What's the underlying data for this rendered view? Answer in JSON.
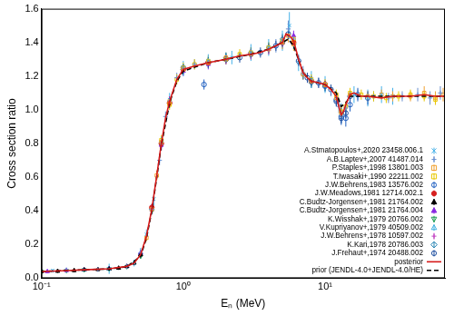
{
  "chart_data": {
    "type": "scatter",
    "x_label": "Eₙ (MeV)",
    "y_label": "Cross section ratio",
    "log": "x",
    "grid": false,
    "legend": "lower right",
    "xlim": [
      0.1,
      70
    ],
    "xticks": [
      {
        "value": 0.1,
        "label": "10⁻¹"
      },
      {
        "value": 1,
        "label": "10⁰"
      },
      {
        "value": 10,
        "label": "10¹"
      }
    ],
    "ylim": [
      0,
      1.6
    ],
    "yticks": [
      {
        "value": 0,
        "label": "0.0"
      },
      0.2,
      0.4,
      0.6,
      0.8,
      {
        "value": 1,
        "label": "1.0"
      },
      1.2,
      1.4,
      1.6
    ],
    "series": [
      {
        "name": "A.Stmatopoulos+,2020 23458.006.1",
        "type": "scatter",
        "marker": "x",
        "color": "#45b0e8",
        "x": [
          0.12,
          0.2,
          0.3,
          0.45,
          0.55,
          0.62,
          0.7,
          0.8,
          1.0,
          1.5,
          2.2,
          3.0,
          4.0,
          5.0,
          5.6,
          6.5,
          8,
          10,
          13,
          16,
          20,
          25,
          30
        ],
        "values": [
          0.045,
          0.05,
          0.056,
          0.09,
          0.26,
          0.47,
          0.8,
          1.06,
          1.25,
          1.29,
          1.31,
          1.34,
          1.37,
          1.41,
          1.5,
          1.28,
          1.18,
          1.15,
          0.98,
          1.09,
          1.07,
          1.09,
          1.08
        ],
        "errors": [
          0.01,
          0.01,
          0.01,
          0.02,
          0.03,
          0.04,
          0.04,
          0.04,
          0.04,
          0.04,
          0.04,
          0.05,
          0.05,
          0.06,
          0.08,
          0.05,
          0.05,
          0.05,
          0.06,
          0.05,
          0.05,
          0.05,
          0.05
        ]
      },
      {
        "name": "A.B.Laptev+,2007 41487.014",
        "type": "scatter",
        "marker": "+",
        "color": "#6a8fcf",
        "x": [
          0.15,
          0.25,
          0.4,
          0.5,
          0.6,
          0.68,
          0.75,
          0.9,
          1.2,
          2,
          3,
          4.5,
          5.5,
          6,
          7,
          9,
          11,
          12.5,
          14,
          17,
          22,
          28,
          35,
          45,
          55,
          65
        ],
        "values": [
          0.05,
          0.052,
          0.07,
          0.15,
          0.41,
          0.7,
          0.96,
          1.19,
          1.27,
          1.3,
          1.33,
          1.38,
          1.48,
          1.42,
          1.22,
          1.16,
          1.11,
          1.02,
          1.01,
          1.09,
          1.08,
          1.07,
          1.08,
          1.09,
          1.07,
          1.1
        ],
        "errors": [
          0.01,
          0.01,
          0.01,
          0.02,
          0.03,
          0.03,
          0.03,
          0.03,
          0.03,
          0.03,
          0.03,
          0.04,
          0.05,
          0.04,
          0.04,
          0.03,
          0.03,
          0.04,
          0.04,
          0.03,
          0.03,
          0.03,
          0.03,
          0.04,
          0.04,
          0.04
        ]
      },
      {
        "name": "P.Staples+,1998 13801.003",
        "type": "scatter",
        "marker": "open_square",
        "color": "#f0a030",
        "x": [
          0.55,
          0.6,
          0.65,
          0.7,
          0.8,
          1,
          1.5,
          2,
          3,
          4,
          5,
          5.5,
          6,
          7,
          8,
          10,
          12,
          13,
          15,
          20,
          25,
          30,
          40,
          50,
          60,
          68
        ],
        "values": [
          0.24,
          0.41,
          0.61,
          0.81,
          1.05,
          1.24,
          1.28,
          1.31,
          1.33,
          1.36,
          1.4,
          1.44,
          1.39,
          1.21,
          1.17,
          1.15,
          1.07,
          0.98,
          1.09,
          1.08,
          1.09,
          1.08,
          1.08,
          1.1,
          1.07,
          1.09
        ],
        "errors": [
          0.02,
          0.02,
          0.03,
          0.03,
          0.03,
          0.03,
          0.03,
          0.03,
          0.03,
          0.03,
          0.04,
          0.04,
          0.04,
          0.03,
          0.03,
          0.03,
          0.03,
          0.04,
          0.03,
          0.03,
          0.03,
          0.03,
          0.03,
          0.04,
          0.04,
          0.04
        ]
      },
      {
        "name": "T.Iwasaki+,1990 22211.002",
        "type": "scatter",
        "marker": "open_square",
        "color": "#e8c800",
        "x": [
          0.7,
          0.8,
          0.9,
          1.0,
          1.2,
          1.5,
          2,
          2.5,
          3,
          4,
          5,
          6,
          8,
          10,
          12,
          13,
          14,
          15,
          18,
          22,
          27,
          33,
          40,
          50,
          60
        ],
        "values": [
          0.82,
          1.03,
          1.18,
          1.25,
          1.27,
          1.29,
          1.3,
          1.33,
          1.34,
          1.37,
          1.41,
          1.42,
          1.18,
          1.15,
          1.09,
          0.99,
          1.02,
          1.1,
          1.09,
          1.08,
          1.07,
          1.08,
          1.09,
          1.08,
          1.06
        ],
        "errors": [
          0.03,
          0.03,
          0.03,
          0.03,
          0.03,
          0.03,
          0.03,
          0.03,
          0.03,
          0.03,
          0.03,
          0.03,
          0.03,
          0.03,
          0.03,
          0.03,
          0.03,
          0.03,
          0.03,
          0.03,
          0.03,
          0.03,
          0.03,
          0.03,
          0.03
        ]
      },
      {
        "name": "J.W.Behrens,1983 13576.002",
        "type": "scatter",
        "marker": "open_circle",
        "color": "#2060c0",
        "x": [
          1,
          1.4,
          2,
          3,
          5,
          8,
          10,
          12,
          13,
          14,
          15,
          17,
          20
        ],
        "values": [
          1.25,
          1.15,
          1.3,
          1.33,
          1.4,
          1.17,
          1.14,
          1.06,
          0.96,
          0.95,
          1.03,
          1.09,
          1.07
        ],
        "errors": [
          0.02,
          0.03,
          0.02,
          0.02,
          0.03,
          0.03,
          0.03,
          0.04,
          0.05,
          0.05,
          0.04,
          0.04,
          0.04
        ]
      },
      {
        "name": "J.W.Meadows,1981 12714.002.1",
        "type": "scatter",
        "marker": "filled_circle",
        "color": "#d62020",
        "x": [
          0.6,
          0.7,
          0.8,
          1,
          1.5,
          2,
          3,
          5,
          6,
          8,
          10
        ],
        "values": [
          0.42,
          0.8,
          1.04,
          1.24,
          1.28,
          1.3,
          1.33,
          1.4,
          1.4,
          1.17,
          1.15
        ],
        "errors": [
          0.02,
          0.02,
          0.02,
          0.02,
          0.02,
          0.02,
          0.02,
          0.02,
          0.02,
          0.02,
          0.02
        ]
      },
      {
        "name": "C.Budtz-Jorgensen+,1981 21764.002",
        "type": "scatter",
        "marker": "filled_triangle",
        "color": "#000000",
        "x": [
          0.1,
          0.13,
          0.17,
          0.2,
          0.25,
          0.3,
          0.35,
          0.4,
          0.45,
          0.5
        ],
        "values": [
          0.04,
          0.042,
          0.046,
          0.05,
          0.052,
          0.055,
          0.06,
          0.07,
          0.09,
          0.14
        ],
        "errors": [
          0.01,
          0.01,
          0.01,
          0.01,
          0.01,
          0.01,
          0.01,
          0.01,
          0.01,
          0.01
        ]
      },
      {
        "name": "C.Budtz-Jorgensen+,1981 21764.004",
        "type": "scatter",
        "marker": "filled_triangle",
        "color": "#8a2be2",
        "x": [
          0.11,
          0.15,
          0.2,
          0.3,
          0.4,
          0.5,
          0.6,
          0.7,
          0.8,
          1.0,
          1.5,
          2,
          3,
          4,
          5,
          6
        ],
        "values": [
          0.04,
          0.046,
          0.05,
          0.057,
          0.07,
          0.15,
          0.42,
          0.79,
          1.05,
          1.23,
          1.27,
          1.3,
          1.33,
          1.36,
          1.41,
          1.44
        ],
        "errors": [
          0.01,
          0.01,
          0.01,
          0.01,
          0.01,
          0.02,
          0.02,
          0.03,
          0.03,
          0.03,
          0.03,
          0.03,
          0.03,
          0.03,
          0.03,
          0.03
        ]
      },
      {
        "name": "K.Wisshak+,1979 20766.002",
        "type": "scatter",
        "marker": "triangle_down",
        "color": "#1a9a50",
        "x": [
          0.1,
          0.15,
          0.2,
          0.3,
          0.4,
          0.5,
          0.6
        ],
        "values": [
          0.04,
          0.045,
          0.05,
          0.056,
          0.068,
          0.13,
          0.4
        ],
        "errors": [
          0.01,
          0.01,
          0.01,
          0.01,
          0.01,
          0.01,
          0.01
        ]
      },
      {
        "name": "V.Kupriyanov+,1979 40509.002",
        "type": "scatter",
        "marker": "open_triangle",
        "color": "#40b0e0",
        "x": [
          0.3,
          0.5,
          0.7,
          1,
          1.5,
          2
        ],
        "values": [
          0.056,
          0.15,
          0.81,
          1.23,
          1.29,
          1.31
        ],
        "errors": [
          0.03,
          0.03,
          0.03,
          0.03,
          0.03,
          0.03
        ]
      },
      {
        "name": "J.W.Behrens+,1978 10597.002",
        "type": "scatter",
        "marker": "+",
        "color": "#c040c0",
        "x": [
          0.5,
          0.6,
          0.7,
          0.8,
          1,
          1.5,
          2,
          3,
          4,
          5,
          6,
          8,
          10
        ],
        "values": [
          0.14,
          0.4,
          0.79,
          1.05,
          1.24,
          1.28,
          1.3,
          1.34,
          1.36,
          1.4,
          1.41,
          1.17,
          1.15
        ],
        "errors": [
          0.02,
          0.02,
          0.02,
          0.02,
          0.02,
          0.02,
          0.02,
          0.02,
          0.02,
          0.02,
          0.02,
          0.02,
          0.02
        ]
      },
      {
        "name": "K.Kari,1978 20786.003",
        "type": "scatter",
        "marker": "open_diamond",
        "color": "#2080b0",
        "x": [
          0.6,
          0.8,
          1,
          1.5,
          2,
          3,
          4,
          5,
          6,
          7,
          8,
          10
        ],
        "values": [
          0.41,
          1.04,
          1.24,
          1.28,
          1.31,
          1.34,
          1.37,
          1.42,
          1.39,
          1.21,
          1.16,
          1.14
        ],
        "errors": [
          0.03,
          0.03,
          0.03,
          0.03,
          0.03,
          0.03,
          0.03,
          0.03,
          0.03,
          0.03,
          0.03,
          0.03
        ]
      },
      {
        "name": "J.Frehaut+,1974 20488.002",
        "type": "scatter",
        "marker": "open_circle",
        "color": "#1f4fa0",
        "x": [
          1.5,
          2.5,
          3.5,
          4.5,
          5.5,
          6.5,
          7.5,
          9,
          11,
          12,
          13,
          14,
          15
        ],
        "values": [
          1.28,
          1.31,
          1.34,
          1.38,
          1.45,
          1.29,
          1.19,
          1.16,
          1.12,
          1.05,
          0.95,
          0.98,
          1.08
        ],
        "errors": [
          0.03,
          0.03,
          0.03,
          0.03,
          0.03,
          0.03,
          0.03,
          0.03,
          0.03,
          0.03,
          0.03,
          0.03,
          0.03
        ]
      },
      {
        "name": "posterior",
        "type": "line",
        "line_style": "solid",
        "color": "#d61a1a",
        "x": [
          0.1,
          0.15,
          0.2,
          0.3,
          0.4,
          0.45,
          0.5,
          0.55,
          0.6,
          0.65,
          0.7,
          0.75,
          0.8,
          0.9,
          1.0,
          1.2,
          1.5,
          2,
          2.5,
          3,
          3.5,
          4,
          4.5,
          5,
          5.3,
          5.6,
          6,
          6.5,
          7,
          7.5,
          8,
          9,
          10,
          11,
          12,
          12.5,
          13,
          13.5,
          14,
          15,
          16,
          18,
          20,
          25,
          30,
          40,
          50,
          60,
          70
        ],
        "values": [
          0.04,
          0.045,
          0.05,
          0.056,
          0.07,
          0.09,
          0.14,
          0.25,
          0.41,
          0.61,
          0.8,
          0.95,
          1.05,
          1.18,
          1.24,
          1.26,
          1.28,
          1.3,
          1.32,
          1.33,
          1.34,
          1.36,
          1.38,
          1.4,
          1.45,
          1.44,
          1.41,
          1.3,
          1.22,
          1.19,
          1.17,
          1.16,
          1.15,
          1.12,
          1.08,
          1.02,
          0.97,
          0.99,
          1.03,
          1.09,
          1.1,
          1.08,
          1.08,
          1.07,
          1.08,
          1.08,
          1.09,
          1.08,
          1.08
        ]
      },
      {
        "name": "prior (JENDL-4.0+JENDL-4.0/HE)",
        "type": "line",
        "line_style": "dashed",
        "color": "#000000",
        "x": [
          0.1,
          0.2,
          0.3,
          0.4,
          0.5,
          0.55,
          0.6,
          0.65,
          0.7,
          0.8,
          0.9,
          1,
          1.5,
          2,
          3,
          4,
          5,
          5.5,
          6,
          7,
          8,
          10,
          12,
          13,
          14,
          15,
          20,
          30,
          50,
          70
        ],
        "values": [
          0.04,
          0.05,
          0.055,
          0.068,
          0.13,
          0.24,
          0.4,
          0.6,
          0.79,
          1.04,
          1.17,
          1.23,
          1.28,
          1.3,
          1.33,
          1.36,
          1.4,
          1.42,
          1.38,
          1.22,
          1.17,
          1.15,
          1.1,
          1.02,
          1.04,
          1.08,
          1.08,
          1.08,
          1.08,
          1.08
        ]
      }
    ]
  }
}
